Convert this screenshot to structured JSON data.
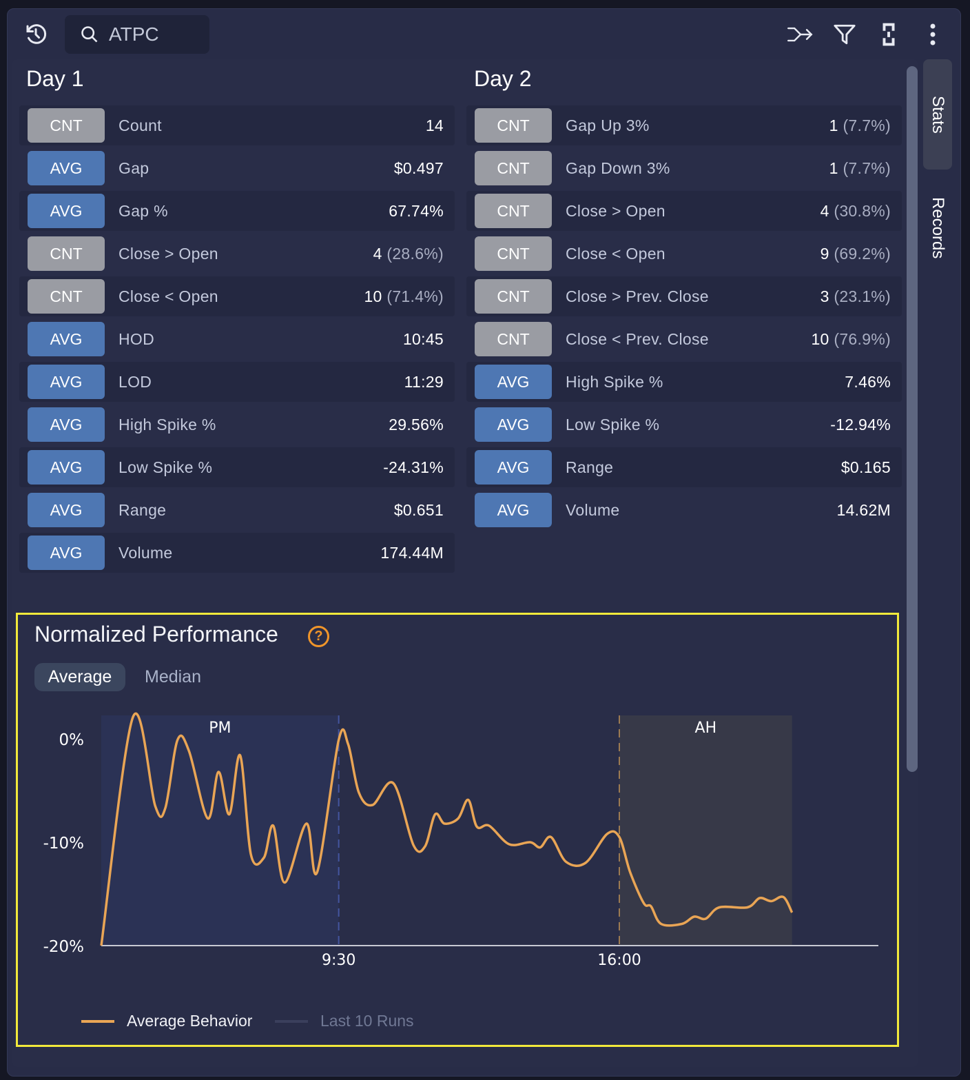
{
  "toolbar": {
    "search_value": "ATPC",
    "icons": [
      "history-icon",
      "search-icon",
      "merge-arrow-icon",
      "filter-icon",
      "link-bracket-icon",
      "more-vertical-icon"
    ]
  },
  "side_tabs": {
    "stats": "Stats",
    "records": "Records",
    "active": "Stats"
  },
  "day1": {
    "title": "Day 1",
    "rows": [
      {
        "badge": "CNT",
        "label": "Count",
        "value": "14",
        "pct": ""
      },
      {
        "badge": "AVG",
        "label": "Gap",
        "value": "$0.497",
        "pct": ""
      },
      {
        "badge": "AVG",
        "label": "Gap %",
        "value": "67.74%",
        "pct": ""
      },
      {
        "badge": "CNT",
        "label": "Close > Open",
        "value": "4",
        "pct": "(28.6%)"
      },
      {
        "badge": "CNT",
        "label": "Close < Open",
        "value": "10",
        "pct": "(71.4%)"
      },
      {
        "badge": "AVG",
        "label": "HOD",
        "value": "10:45",
        "pct": ""
      },
      {
        "badge": "AVG",
        "label": "LOD",
        "value": "11:29",
        "pct": ""
      },
      {
        "badge": "AVG",
        "label": "High Spike %",
        "value": "29.56%",
        "pct": ""
      },
      {
        "badge": "AVG",
        "label": "Low Spike %",
        "value": "-24.31%",
        "pct": ""
      },
      {
        "badge": "AVG",
        "label": "Range",
        "value": "$0.651",
        "pct": ""
      },
      {
        "badge": "AVG",
        "label": "Volume",
        "value": "174.44M",
        "pct": ""
      }
    ]
  },
  "day2": {
    "title": "Day 2",
    "rows": [
      {
        "badge": "CNT",
        "label": "Gap Up 3%",
        "value": "1",
        "pct": "(7.7%)"
      },
      {
        "badge": "CNT",
        "label": "Gap Down 3%",
        "value": "1",
        "pct": "(7.7%)"
      },
      {
        "badge": "CNT",
        "label": "Close > Open",
        "value": "4",
        "pct": "(30.8%)"
      },
      {
        "badge": "CNT",
        "label": "Close < Open",
        "value": "9",
        "pct": "(69.2%)"
      },
      {
        "badge": "CNT",
        "label": "Close > Prev. Close",
        "value": "3",
        "pct": "(23.1%)"
      },
      {
        "badge": "CNT",
        "label": "Close < Prev. Close",
        "value": "10",
        "pct": "(76.9%)"
      },
      {
        "badge": "AVG",
        "label": "High Spike %",
        "value": "7.46%",
        "pct": ""
      },
      {
        "badge": "AVG",
        "label": "Low Spike %",
        "value": "-12.94%",
        "pct": ""
      },
      {
        "badge": "AVG",
        "label": "Range",
        "value": "$0.165",
        "pct": ""
      },
      {
        "badge": "AVG",
        "label": "Volume",
        "value": "14.62M",
        "pct": ""
      }
    ]
  },
  "colors": {
    "cnt_badge": "#9a9ca3",
    "avg_badge": "#4e77b3",
    "line": "#e9a555",
    "highlight": "#f2ea3b",
    "help": "#f0952a"
  },
  "performance": {
    "title": "Normalized Performance",
    "tabs": [
      "Average",
      "Median"
    ],
    "active_tab": "Average",
    "legend": [
      "Average Behavior",
      "Last 10 Runs"
    ]
  },
  "chart_data": {
    "type": "line",
    "x_unit": "time of day",
    "xlim": [
      "4:00",
      "22:00"
    ],
    "ylim": [
      -20,
      2.5
    ],
    "yticks": [
      "0%",
      "-10%",
      "-20%"
    ],
    "ytick_values": [
      0,
      -10,
      -20
    ],
    "xticks": [
      "9:30",
      "16:00"
    ],
    "regions": [
      {
        "label": "PM",
        "from": "4:00",
        "to": "9:30",
        "color": "#2b3255"
      },
      {
        "label": "AH",
        "from": "16:00",
        "to": "20:00",
        "color": "#373948"
      }
    ],
    "legend_placement": "bottom-left",
    "series": [
      {
        "name": "Average Behavior",
        "color": "#e9a555",
        "points": [
          [
            "4:00",
            -20
          ],
          [
            "4:44",
            2.1
          ],
          [
            "5:15",
            -6.5
          ],
          [
            "5:29",
            -6.7
          ],
          [
            "5:46",
            -0.1
          ],
          [
            "6:02",
            -1.2
          ],
          [
            "6:28",
            -7.7
          ],
          [
            "6:43",
            -3.2
          ],
          [
            "6:58",
            -7.3
          ],
          [
            "7:13",
            -1.6
          ],
          [
            "7:28",
            -11.2
          ],
          [
            "7:46",
            -11.5
          ],
          [
            "7:59",
            -8.4
          ],
          [
            "8:15",
            -13.9
          ],
          [
            "8:45",
            -8.2
          ],
          [
            "9:00",
            -12.9
          ],
          [
            "9:30",
            -0.1
          ],
          [
            "9:43",
            -0.5
          ],
          [
            "9:58",
            -5.2
          ],
          [
            "10:17",
            -6.4
          ],
          [
            "10:46",
            -4.3
          ],
          [
            "11:14",
            -10.3
          ],
          [
            "11:30",
            -10.4
          ],
          [
            "11:44",
            -7.3
          ],
          [
            "11:57",
            -8.2
          ],
          [
            "12:16",
            -7.7
          ],
          [
            "12:30",
            -5.9
          ],
          [
            "12:42",
            -8.5
          ],
          [
            "12:59",
            -8.4
          ],
          [
            "13:27",
            -10.2
          ],
          [
            "13:56",
            -10.0
          ],
          [
            "14:10",
            -10.5
          ],
          [
            "14:25",
            -9.5
          ],
          [
            "14:46",
            -11.9
          ],
          [
            "15:13",
            -12.0
          ],
          [
            "15:43",
            -9.2
          ],
          [
            "16:00",
            -9.5
          ],
          [
            "16:15",
            -12.9
          ],
          [
            "16:34",
            -15.9
          ],
          [
            "16:44",
            -16.2
          ],
          [
            "16:58",
            -17.9
          ],
          [
            "17:27",
            -17.9
          ],
          [
            "17:44",
            -17.2
          ],
          [
            "18:00",
            -17.4
          ],
          [
            "18:19",
            -16.3
          ],
          [
            "18:58",
            -16.3
          ],
          [
            "19:15",
            -15.4
          ],
          [
            "19:31",
            -15.7
          ],
          [
            "19:48",
            -15.3
          ],
          [
            "20:00",
            -16.8
          ]
        ]
      },
      {
        "name": "Last 10 Runs",
        "color": "#3a3f5c",
        "points": []
      }
    ]
  }
}
